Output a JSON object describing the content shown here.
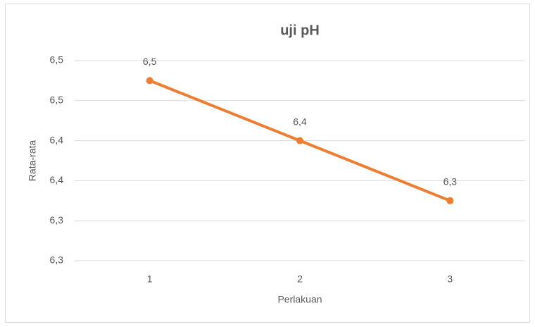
{
  "chart_data": {
    "type": "line",
    "title": "uji pH",
    "xlabel": "Perlakuan",
    "ylabel": "Rata-rata",
    "categories": [
      "1",
      "2",
      "3"
    ],
    "series": [
      {
        "name": "Rata-rata",
        "color": "#ed7d31",
        "values": [
          6.475,
          6.4,
          6.325
        ],
        "value_labels": [
          "6,5",
          "6,4",
          "6,3"
        ]
      }
    ],
    "ylim": [
      6.25,
      6.5
    ],
    "yticks": [
      {
        "value": 6.25,
        "label": "6,3"
      },
      {
        "value": 6.3,
        "label": "6,3"
      },
      {
        "value": 6.35,
        "label": "6,4"
      },
      {
        "value": 6.4,
        "label": "6,4"
      },
      {
        "value": 6.45,
        "label": "6,5"
      },
      {
        "value": 6.5,
        "label": "6,5"
      }
    ],
    "grid": true
  }
}
